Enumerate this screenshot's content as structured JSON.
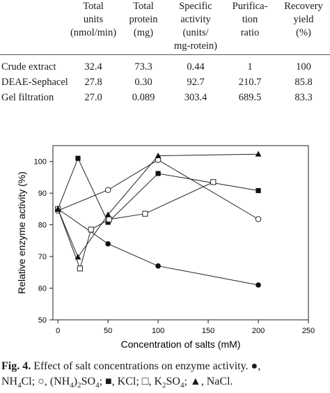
{
  "table": {
    "headers": [
      "",
      "Total\nunits\n(nmol/min)",
      "Total\nprotein\n(mg)",
      "Specific\nactivity\n(units/\nmg-rotein)",
      "Purifica-\ntion\nratio",
      "Recovery\nyield\n(%)"
    ],
    "rows": [
      [
        "Crude extract",
        "32.4",
        "73.3",
        "0.44",
        "1",
        "100"
      ],
      [
        "DEAE-Sephacel",
        "27.8",
        "0.30",
        "92.7",
        "210.7",
        "85.8"
      ],
      [
        "Gel filtration",
        "27.0",
        "0.089",
        "303.4",
        "689.5",
        "83.3"
      ]
    ]
  },
  "chart_data": {
    "type": "line",
    "xlabel": "Concentration of salts (mM)",
    "ylabel": "Relative enzyme activity (%)",
    "xlim": [
      -5,
      250
    ],
    "ylim": [
      50,
      105
    ],
    "xticks": [
      0,
      50,
      100,
      150,
      200,
      250
    ],
    "yticks": [
      50,
      60,
      70,
      80,
      90,
      100
    ],
    "grid": false,
    "series": [
      {
        "marker": "filled-circle",
        "x": [
          0,
          50,
          100,
          200
        ],
        "y": [
          85.0,
          74.0,
          67.0,
          61.0
        ]
      },
      {
        "marker": "open-circle",
        "x": [
          0,
          50,
          100,
          200
        ],
        "y": [
          84.5,
          91.0,
          100.5,
          81.8
        ]
      },
      {
        "marker": "filled-square",
        "x": [
          0,
          20,
          50,
          100,
          200
        ],
        "y": [
          85.0,
          101.0,
          80.8,
          96.2,
          90.8
        ]
      },
      {
        "marker": "open-square",
        "x": [
          0,
          22,
          33,
          51,
          87,
          155
        ],
        "y": [
          85.0,
          66.2,
          78.5,
          81.7,
          83.5,
          93.5
        ]
      },
      {
        "marker": "filled-triangle",
        "x": [
          0,
          20,
          50,
          100,
          200
        ],
        "y": [
          85.0,
          69.8,
          83.2,
          101.8,
          102.3
        ]
      }
    ]
  },
  "caption": {
    "fig_label": "Fig. 4.",
    "line1": " Effect of salt concentrations on enzyme activity. ●,",
    "line2_parts": [
      {
        "t": "NH"
      },
      {
        "sub": "4"
      },
      {
        "t": "Cl; ○, (NH"
      },
      {
        "sub": "4"
      },
      {
        "t": ")"
      },
      {
        "sub": "2"
      },
      {
        "t": "SO"
      },
      {
        "sub": "4"
      },
      {
        "t": "; ■, KCl; □, K"
      },
      {
        "sub": "2"
      },
      {
        "t": "SO"
      },
      {
        "sub": "4"
      },
      {
        "t": "; ▲, NaCl."
      }
    ]
  }
}
